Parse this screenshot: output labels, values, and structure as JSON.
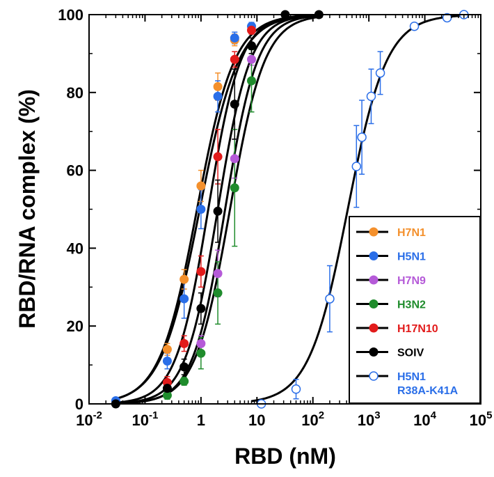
{
  "chart_data": {
    "type": "scatter",
    "xlabel": "RBD (nM)",
    "ylabel": "RBD/RNA complex  (%)",
    "x_scale": "log",
    "xlim": [
      0.01,
      100000
    ],
    "ylim": [
      0,
      100
    ],
    "x_ticks": [
      {
        "value": 0.01,
        "base": "10",
        "exp": "-2"
      },
      {
        "value": 0.1,
        "base": "10",
        "exp": "-1"
      },
      {
        "value": 1,
        "base": "1",
        "exp": ""
      },
      {
        "value": 10,
        "base": "10",
        "exp": ""
      },
      {
        "value": 100,
        "base": "10",
        "exp": "2"
      },
      {
        "value": 1000,
        "base": "10",
        "exp": "3"
      },
      {
        "value": 10000,
        "base": "10",
        "exp": "4"
      },
      {
        "value": 100000,
        "base": "10",
        "exp": "5"
      }
    ],
    "y_ticks": [
      0,
      20,
      40,
      60,
      80,
      100
    ],
    "grid": false,
    "legend_position": "bottom-right",
    "series": [
      {
        "name": "H7N1",
        "name_lines": [
          "H7N1"
        ],
        "color": "#f4902c",
        "filled": true,
        "points": [
          [
            0.25,
            14,
            1.5
          ],
          [
            0.5,
            32,
            2.5
          ],
          [
            1,
            56,
            4
          ],
          [
            2,
            81.5,
            3.5
          ],
          [
            4,
            93.5,
            1.5
          ]
        ],
        "fit": {
          "kd": 0.85,
          "n": 1.3
        }
      },
      {
        "name": "H5N1",
        "name_lines": [
          "H5N1"
        ],
        "color": "#2a6ee8",
        "filled": true,
        "points": [
          [
            0.03,
            0.8,
            0.5
          ],
          [
            0.25,
            11,
            2
          ],
          [
            0.5,
            27,
            5
          ],
          [
            1,
            50,
            5
          ],
          [
            2,
            79,
            4
          ],
          [
            4,
            94,
            1.5
          ],
          [
            8,
            97,
            1
          ]
        ],
        "fit": {
          "kd": 0.95,
          "n": 1.25
        }
      },
      {
        "name": "H7N9",
        "name_lines": [
          "H7N9"
        ],
        "color": "#b55ad8",
        "filled": true,
        "points": [
          [
            1,
            15.5,
            2
          ],
          [
            2,
            33.5,
            6
          ],
          [
            4,
            63,
            5
          ],
          [
            8,
            88.5,
            1.5
          ]
        ],
        "fit": {
          "kd": 2.7,
          "n": 1.5
        }
      },
      {
        "name": "H3N2",
        "name_lines": [
          "H3N2"
        ],
        "color": "#1f8c2c",
        "filled": true,
        "points": [
          [
            0.25,
            2.2,
            1
          ],
          [
            0.5,
            5.8,
            1
          ],
          [
            1,
            13,
            4
          ],
          [
            2,
            28.5,
            8
          ],
          [
            4,
            55.5,
            15
          ],
          [
            8,
            83,
            8
          ]
        ],
        "fit": {
          "kd": 3.3,
          "n": 1.4
        }
      },
      {
        "name": "H17N10",
        "name_lines": [
          "H17N10"
        ],
        "color": "#e21b1b",
        "filled": true,
        "points": [
          [
            0.25,
            5.5,
            1.5
          ],
          [
            0.5,
            15.5,
            2
          ],
          [
            1,
            34,
            4
          ],
          [
            2,
            63.5,
            7
          ],
          [
            4,
            88.5,
            2
          ],
          [
            8,
            96,
            1
          ]
        ],
        "fit": {
          "kd": 1.35,
          "n": 1.5
        }
      },
      {
        "name": "SOIV",
        "name_lines": [
          "SOIV"
        ],
        "color": "#000000",
        "filled": true,
        "points": [
          [
            0.03,
            0,
            0
          ],
          [
            0.25,
            4,
            1
          ],
          [
            0.5,
            9.5,
            2
          ],
          [
            1,
            24.5,
            4
          ],
          [
            2,
            49.5,
            8
          ],
          [
            4,
            77,
            9
          ],
          [
            8,
            92,
            2
          ],
          [
            32,
            100,
            0
          ],
          [
            128,
            100,
            0
          ]
        ],
        "fit": {
          "kd": 2.0,
          "n": 1.5
        }
      },
      {
        "name": "H5N1 R38A-K41A",
        "name_lines": [
          "H5N1",
          "R38A-K41A"
        ],
        "color": "#2a6ee8",
        "filled": false,
        "points": [
          [
            12,
            0,
            0
          ],
          [
            50,
            3.8,
            2.5
          ],
          [
            200,
            27,
            8.5
          ],
          [
            600,
            61,
            10.5
          ],
          [
            750,
            68.5,
            9.5
          ],
          [
            1100,
            79,
            7
          ],
          [
            1600,
            85,
            5.5
          ],
          [
            6500,
            97,
            0
          ],
          [
            25000,
            99.2,
            0
          ],
          [
            50000,
            100,
            0
          ]
        ],
        "fit": {
          "kd": 420,
          "n": 1.25
        }
      }
    ]
  }
}
